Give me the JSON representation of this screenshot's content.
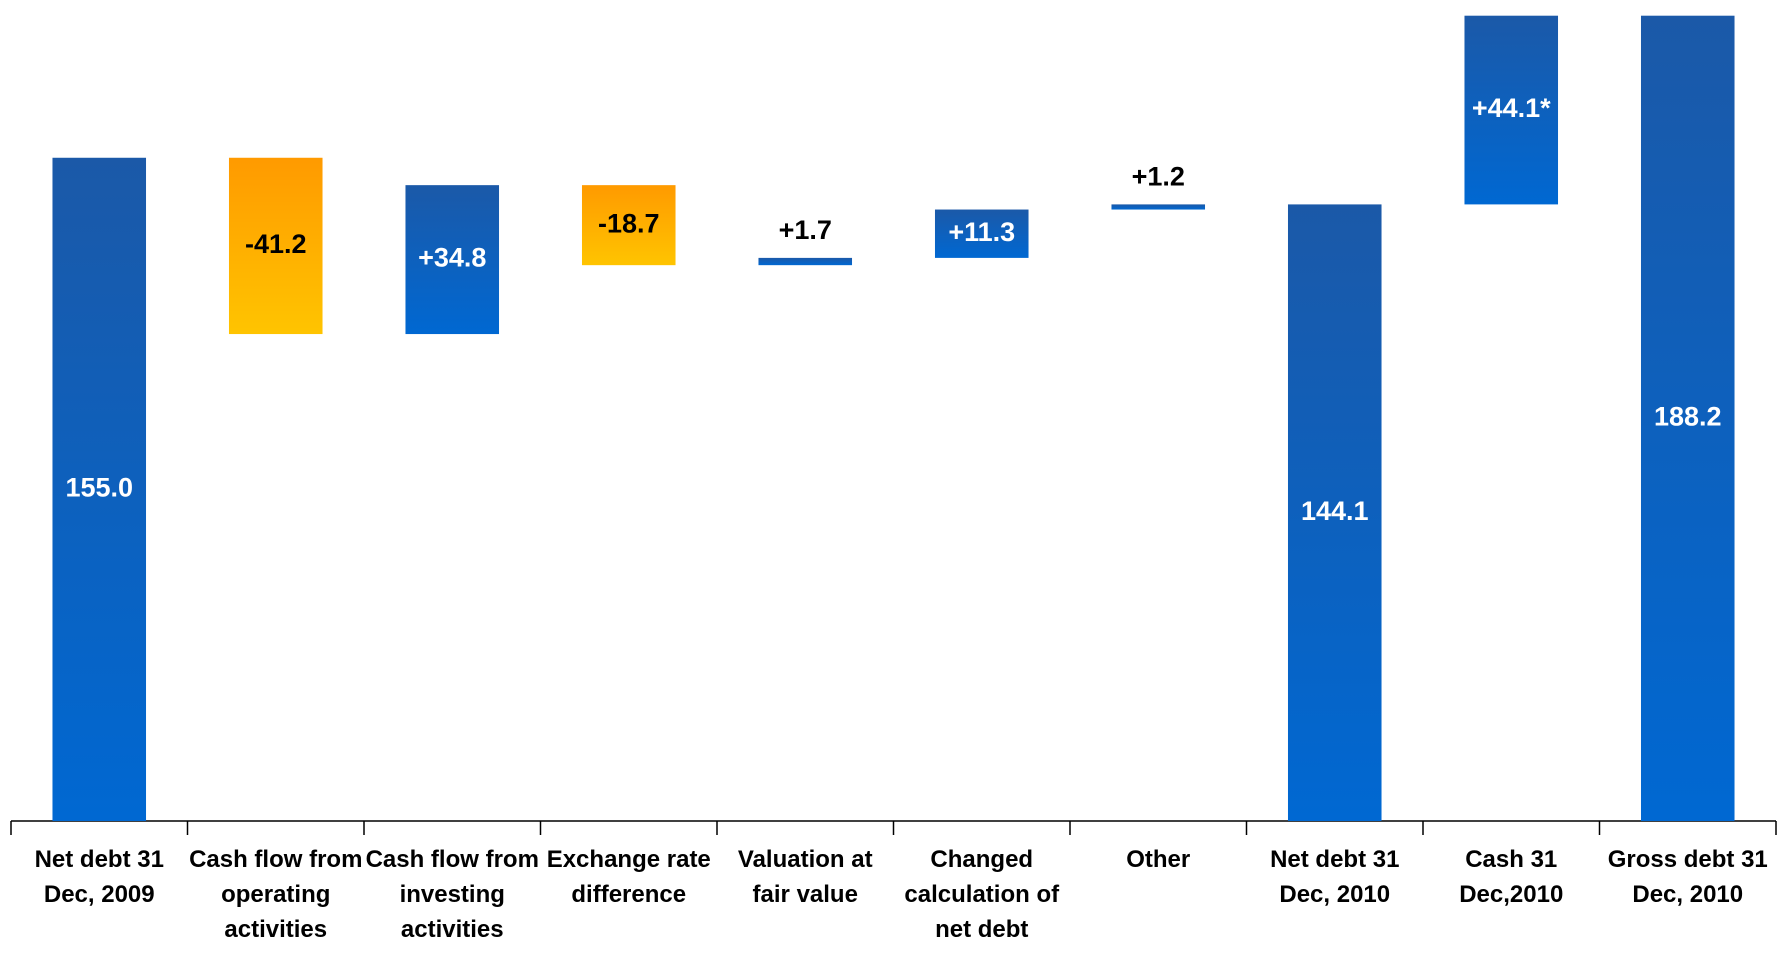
{
  "chart_data": {
    "type": "waterfall",
    "categories": [
      "Net debt 31 Dec, 2009",
      "Cash flow from operating activities",
      "Cash flow from investing activities",
      "Exchange rate difference",
      "Valuation at fair value",
      "Changed calculation of net debt",
      "Other",
      "Net debt 31 Dec, 2010",
      "Cash 31 Dec,2010",
      "Gross debt 31 Dec, 2010"
    ],
    "values": [
      155.0,
      -41.2,
      34.8,
      -18.7,
      1.7,
      11.3,
      1.2,
      144.1,
      44.1,
      188.2
    ],
    "value_labels": [
      "155.0",
      "-41.2",
      "+34.8",
      "-18.7",
      "+1.7",
      "+11.3",
      "+1.2",
      "144.1",
      "+44.1*",
      "188.2"
    ],
    "color": {
      "top": "#1b59a8",
      "bottom": "#0068d2"
    },
    "negative_color": {
      "top": "#ff9a00",
      "bottom": "#ffc400"
    },
    "ylim": [
      0,
      190
    ]
  }
}
